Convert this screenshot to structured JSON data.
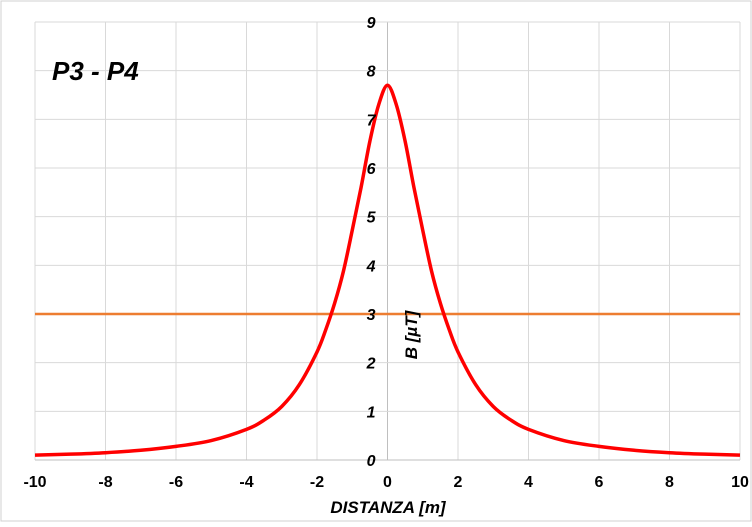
{
  "chart_data": {
    "type": "line",
    "title": "P3 - P4",
    "xlabel": "DISTANZA [m]",
    "ylabel": "B [µT]",
    "xlim": [
      -10,
      10
    ],
    "ylim": [
      0,
      9
    ],
    "xticks": [
      "-10",
      "-8",
      "-6",
      "-4",
      "-2",
      "0",
      "2",
      "4",
      "6",
      "8",
      "10"
    ],
    "yticks": [
      "0",
      "1",
      "2",
      "3",
      "4",
      "5",
      "6",
      "7",
      "8",
      "9"
    ],
    "grid": true,
    "series": [
      {
        "color": "#ff0000",
        "x": [
          -10,
          -9,
          -8,
          -7,
          -6,
          -5,
          -4,
          -3.5,
          -3,
          -2.5,
          -2,
          -1.75,
          -1.5,
          -1.25,
          -1,
          -0.75,
          -0.5,
          -0.25,
          0,
          0.25,
          0.5,
          0.75,
          1,
          1.25,
          1.5,
          1.75,
          2,
          2.5,
          3,
          3.5,
          4,
          5,
          6,
          7,
          8,
          9,
          10
        ],
        "y": [
          0.1,
          0.12,
          0.15,
          0.2,
          0.28,
          0.4,
          0.63,
          0.82,
          1.1,
          1.55,
          2.22,
          2.68,
          3.22,
          3.88,
          4.72,
          5.6,
          6.55,
          7.3,
          7.7,
          7.3,
          6.55,
          5.6,
          4.72,
          3.88,
          3.22,
          2.68,
          2.22,
          1.55,
          1.1,
          0.82,
          0.63,
          0.4,
          0.28,
          0.2,
          0.15,
          0.12,
          0.1
        ]
      },
      {
        "color": "#ed7d31",
        "x": [
          -10,
          10
        ],
        "y": [
          3,
          3
        ]
      }
    ]
  }
}
